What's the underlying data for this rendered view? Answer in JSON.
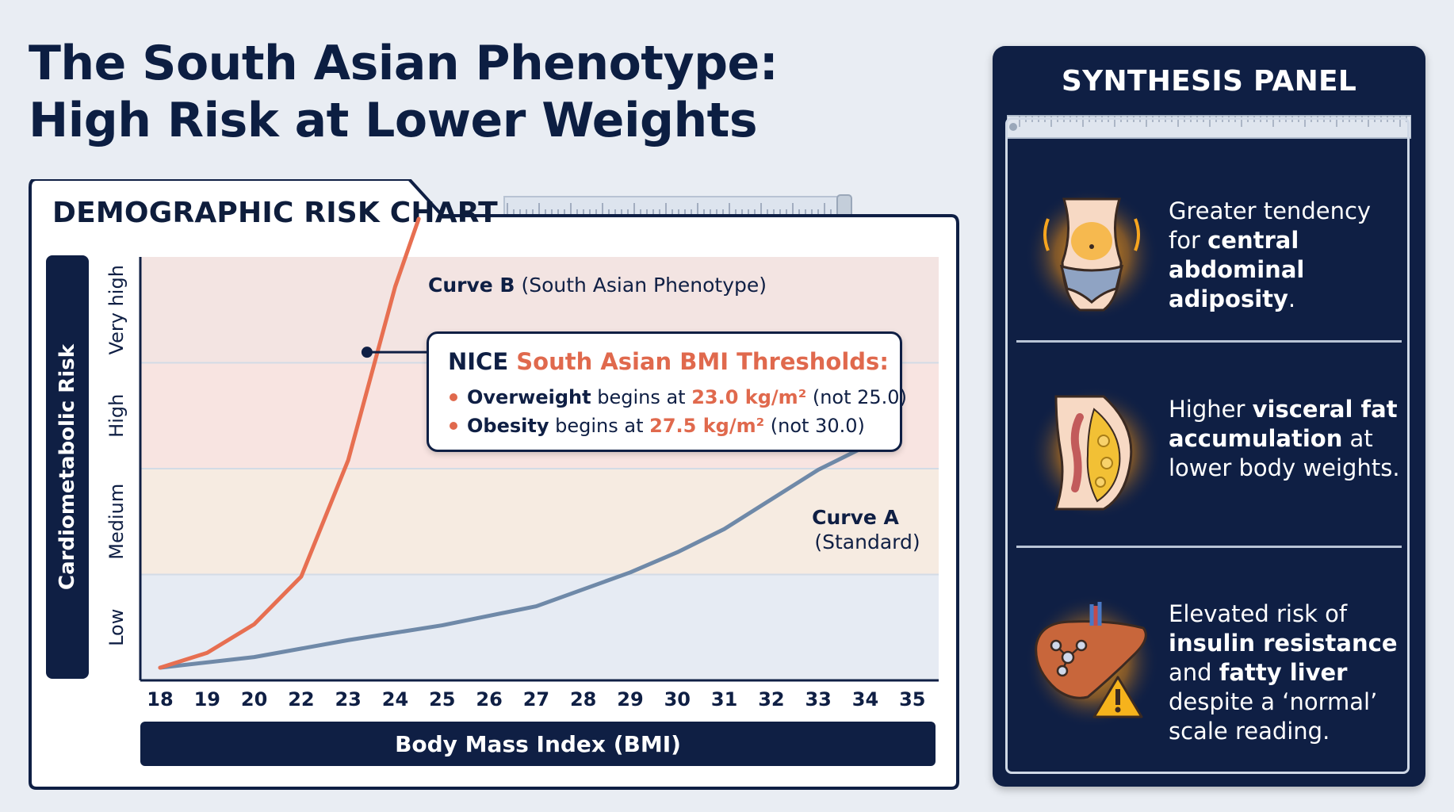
{
  "title": {
    "line1": "The South Asian Phenotype:",
    "line2": "High Risk at Lower Weights"
  },
  "chart_heading": "DEMOGRAPHIC RISK CHART",
  "chart_data": {
    "type": "line",
    "xlabel": "Body Mass Index (BMI)",
    "ylabel": "Cardiometabolic Risk",
    "x_ticks": [
      "18",
      "19",
      "20",
      "22",
      "23",
      "24",
      "25",
      "26",
      "27",
      "28",
      "29",
      "30",
      "31",
      "32",
      "33",
      "34",
      "35"
    ],
    "y_bands": [
      "Low",
      "Medium",
      "High",
      "Very high"
    ],
    "ylim": [
      0,
      4
    ],
    "grid": false,
    "series": [
      {
        "name": "Curve B",
        "label_bold": "Curve B",
        "label_rest": " (South Asian Phenotype)",
        "color": "#e76f51",
        "points": [
          [
            18,
            0.12
          ],
          [
            19,
            0.26
          ],
          [
            20,
            0.53
          ],
          [
            22,
            0.98
          ],
          [
            23,
            2.08
          ],
          [
            24,
            3.72
          ],
          [
            24.5,
            4.36
          ]
        ]
      },
      {
        "name": "Curve A",
        "label_bold": "Curve A",
        "label_rest": "(Standard)",
        "color": "#6f89a8",
        "points": [
          [
            18,
            0.12
          ],
          [
            20,
            0.22
          ],
          [
            23,
            0.38
          ],
          [
            25,
            0.52
          ],
          [
            27,
            0.7
          ],
          [
            28,
            0.86
          ],
          [
            29,
            1.02
          ],
          [
            30,
            1.21
          ],
          [
            31,
            1.43
          ],
          [
            32,
            1.71
          ],
          [
            33,
            1.99
          ],
          [
            34,
            2.21
          ]
        ]
      }
    ],
    "band_colors": [
      "#e6ebf3",
      "#f6ebe1",
      "#f8e4e1",
      "#f3e4e2"
    ]
  },
  "callout": {
    "title_prefix": "NICE",
    "title_accent": "South Asian BMI Thresholds:",
    "overweight_bold": "Overweight",
    "overweight_mid": " begins at ",
    "overweight_value": "23.0 kg/m²",
    "overweight_note": " (not 25.0)",
    "obesity_bold": "Obesity",
    "obesity_mid": " begins at ",
    "obesity_value": "27.5 kg/m²",
    "obesity_note": " (not 30.0)",
    "accent_color": "#e0694d"
  },
  "panel": {
    "title": "SYNTHESIS PANEL",
    "items": [
      {
        "icon": "abdomen-icon",
        "t1": "Greater tendency for ",
        "b1": "central abdominal adiposity",
        "t2": "."
      },
      {
        "icon": "visceral-fat-icon",
        "t1": "Higher ",
        "b1": "visceral fat accumulation",
        "t2": " at lower body weights."
      },
      {
        "icon": "liver-warning-icon",
        "t1": "Elevated risk of ",
        "b1": "insulin resistance",
        "t2": " and ",
        "b2": "fatty liver",
        "t3": " despite a ‘normal’ scale reading."
      }
    ]
  },
  "colors": {
    "navy": "#0f1f44",
    "orange": "#e76f51",
    "steel": "#6f89a8",
    "glow": "#f5a623"
  }
}
